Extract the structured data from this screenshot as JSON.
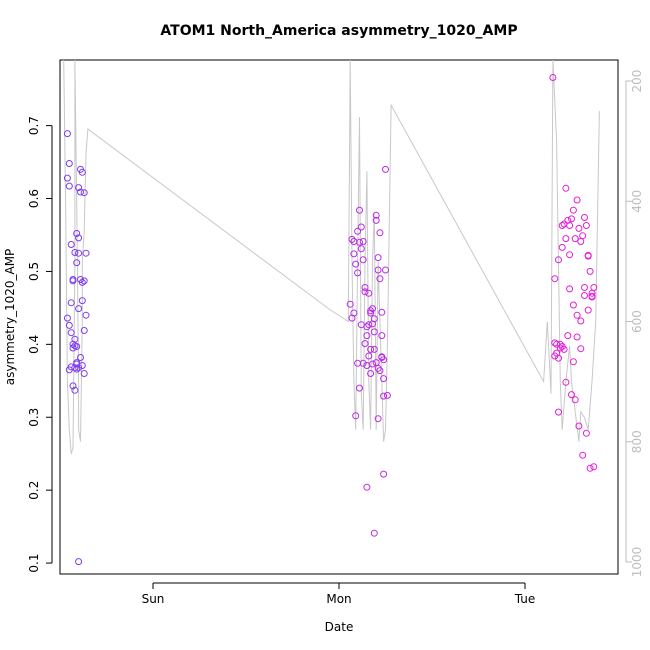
{
  "chart_data": {
    "type": "scatter",
    "title": "ATOM1 North_America asymmetry_1020_AMP",
    "xlabel": "Date",
    "ylabel": "asymmetry_1020_AMP",
    "xlim": [
      0.0,
      3.0
    ],
    "ylim": [
      0.085,
      0.79
    ],
    "x_ticks": [
      {
        "value": 0.5,
        "label": "Sun"
      },
      {
        "value": 1.5,
        "label": "Mon"
      },
      {
        "value": 2.5,
        "label": "Tue"
      }
    ],
    "y_ticks": [
      0.1,
      0.2,
      0.3,
      0.4,
      0.5,
      0.6,
      0.7
    ],
    "y2_ticks": [
      200,
      400,
      600,
      800,
      1000
    ],
    "y2lim": [
      165,
      1020
    ],
    "grid": false,
    "colors": {
      "points_early": "#7a3ff0",
      "points_late": "#e81ed8",
      "line": "#c8c8c8",
      "axis": "#000000",
      "axis_right": "#bdbdbd"
    },
    "series": [
      {
        "x": [
          0.04,
          0.05,
          0.04,
          0.05,
          0.06,
          0.04,
          0.05,
          0.06,
          0.07,
          0.08,
          0.07,
          0.09,
          0.1,
          0.1,
          0.09,
          0.08,
          0.11,
          0.12,
          0.1,
          0.11,
          0.13,
          0.12,
          0.07,
          0.06,
          0.08,
          0.09,
          0.08,
          0.11,
          0.13,
          0.14,
          0.12,
          0.1,
          0.09,
          0.14,
          0.13,
          0.11,
          0.07,
          0.08,
          0.09,
          0.1,
          0.12,
          0.13,
          0.07,
          0.09,
          0.06,
          0.05,
          0.1
        ],
        "y": [
          0.689,
          0.648,
          0.628,
          0.617,
          0.537,
          0.436,
          0.426,
          0.457,
          0.489,
          0.398,
          0.4,
          0.552,
          0.546,
          0.525,
          0.512,
          0.526,
          0.64,
          0.636,
          0.615,
          0.609,
          0.608,
          0.485,
          0.487,
          0.416,
          0.407,
          0.375,
          0.368,
          0.489,
          0.487,
          0.525,
          0.46,
          0.449,
          0.397,
          0.44,
          0.419,
          0.382,
          0.343,
          0.337,
          0.366,
          0.368,
          0.371,
          0.36,
          0.395,
          0.373,
          0.369,
          0.365,
          0.102
        ]
      },
      {
        "x": [
          1.56,
          1.57,
          1.57,
          1.58,
          1.58,
          1.59,
          1.6,
          1.6,
          1.61,
          1.61,
          1.62,
          1.62,
          1.63,
          1.63,
          1.64,
          1.64,
          1.65,
          1.65,
          1.66,
          1.66,
          1.67,
          1.67,
          1.68,
          1.68,
          1.69,
          1.69,
          1.7,
          1.7,
          1.71,
          1.71,
          1.72,
          1.72,
          1.73,
          1.73,
          1.74,
          1.74,
          1.75,
          1.75,
          1.62,
          1.64,
          1.66,
          1.68,
          1.7,
          1.72,
          1.74,
          1.63,
          1.65,
          1.67,
          1.69,
          1.71,
          1.73,
          1.61,
          1.6,
          1.59,
          1.58,
          1.73,
          1.74,
          1.71,
          1.69,
          1.67,
          1.65,
          1.76
        ],
        "y": [
          0.455,
          0.436,
          0.544,
          0.524,
          0.541,
          0.51,
          0.498,
          0.555,
          0.54,
          0.584,
          0.561,
          0.531,
          0.541,
          0.516,
          0.478,
          0.472,
          0.412,
          0.424,
          0.47,
          0.427,
          0.446,
          0.443,
          0.449,
          0.428,
          0.435,
          0.393,
          0.577,
          0.57,
          0.519,
          0.502,
          0.49,
          0.553,
          0.444,
          0.412,
          0.379,
          0.329,
          0.64,
          0.502,
          0.427,
          0.401,
          0.384,
          0.373,
          0.375,
          0.364,
          0.353,
          0.374,
          0.371,
          0.393,
          0.417,
          0.367,
          0.383,
          0.34,
          0.374,
          0.302,
          0.443,
          0.382,
          0.222,
          0.298,
          0.141,
          0.36,
          0.204,
          0.33
        ]
      },
      {
        "x": [
          2.65,
          2.66,
          2.67,
          2.68,
          2.69,
          2.7,
          2.71,
          2.72,
          2.73,
          2.74,
          2.75,
          2.76,
          2.77,
          2.78,
          2.79,
          2.8,
          2.81,
          2.82,
          2.83,
          2.84,
          2.85,
          2.86,
          2.87,
          2.66,
          2.68,
          2.7,
          2.72,
          2.74,
          2.76,
          2.78,
          2.8,
          2.82,
          2.84,
          2.86,
          2.67,
          2.69,
          2.71,
          2.73,
          2.75,
          2.77,
          2.79,
          2.81,
          2.83,
          2.85,
          2.87,
          2.66,
          2.7,
          2.74,
          2.78,
          2.82,
          2.86,
          2.68,
          2.72,
          2.76,
          2.8,
          2.84
        ],
        "y": [
          0.766,
          0.384,
          0.388,
          0.307,
          0.4,
          0.563,
          0.565,
          0.614,
          0.57,
          0.563,
          0.572,
          0.584,
          0.545,
          0.598,
          0.559,
          0.541,
          0.549,
          0.574,
          0.563,
          0.522,
          0.5,
          0.466,
          0.478,
          0.49,
          0.516,
          0.533,
          0.545,
          0.476,
          0.454,
          0.44,
          0.432,
          0.478,
          0.447,
          0.465,
          0.4,
          0.395,
          0.393,
          0.412,
          0.331,
          0.324,
          0.288,
          0.248,
          0.278,
          0.23,
          0.232,
          0.402,
          0.397,
          0.523,
          0.41,
          0.467,
          0.47,
          0.381,
          0.348,
          0.376,
          0.394,
          0.521
        ]
      }
    ],
    "line_series": {
      "axis": "right",
      "x": [
        0.02,
        0.03,
        0.04,
        0.05,
        0.06,
        0.07,
        0.08,
        0.08,
        0.09,
        0.1,
        0.1,
        0.11,
        0.12,
        0.12,
        0.13,
        0.14,
        0.15,
        1.45,
        1.55,
        1.56,
        1.57,
        1.58,
        1.59,
        1.6,
        1.61,
        1.62,
        1.63,
        1.64,
        1.65,
        1.66,
        1.67,
        1.68,
        1.69,
        1.7,
        1.71,
        1.72,
        1.73,
        1.74,
        1.75,
        1.76,
        1.78,
        2.6,
        2.62,
        2.64,
        2.65,
        2.67,
        2.69,
        2.7,
        2.72,
        2.74,
        2.75,
        2.77,
        2.79,
        2.8,
        2.82,
        2.84,
        2.86,
        2.88,
        2.9
      ],
      "y": [
        165,
        400,
        700,
        780,
        820,
        810,
        500,
        165,
        400,
        700,
        780,
        800,
        600,
        500,
        450,
        320,
        280,
        580,
        600,
        165,
        500,
        700,
        780,
        500,
        260,
        720,
        780,
        500,
        350,
        700,
        780,
        500,
        420,
        780,
        500,
        600,
        700,
        800,
        780,
        640,
        240,
        700,
        600,
        720,
        165,
        300,
        700,
        780,
        700,
        640,
        700,
        750,
        800,
        750,
        760,
        780,
        700,
        600,
        250
      ]
    }
  }
}
